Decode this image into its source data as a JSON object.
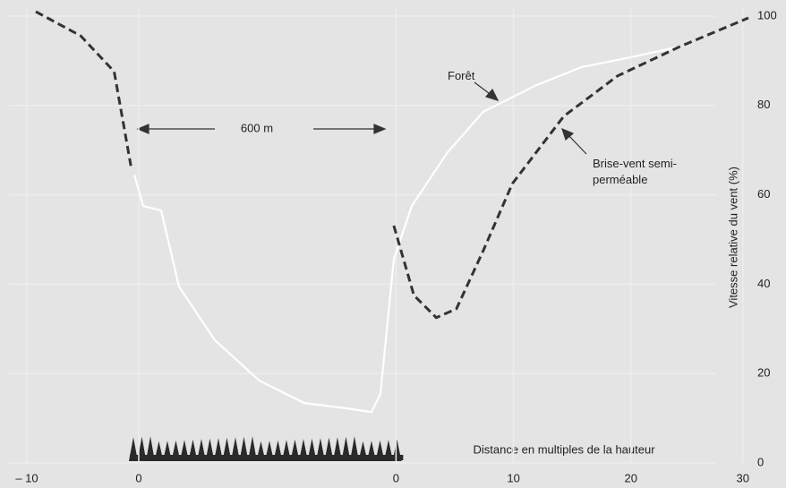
{
  "chart_data": {
    "type": "line",
    "y_label": "Vitesse relative du vent (%)",
    "x_label": "Distance en multiples de la hauteur",
    "annotation": "600 m",
    "xlim": [
      -11,
      56.5
    ],
    "xticks": [
      {
        "value": -10,
        "label": "– 10"
      },
      0,
      {
        "value": 23,
        "label": "0"
      },
      {
        "value": 33.5,
        "label": "10"
      },
      {
        "value": 44,
        "label": "20"
      },
      {
        "value": 54,
        "label": "30"
      }
    ],
    "ylim": [
      0,
      102
    ],
    "yticks": [
      0,
      20,
      40,
      60,
      80,
      100
    ],
    "grid": true,
    "series": [
      {
        "name": "Forêt",
        "color": "#ffffff",
        "dashed": false,
        "x": [
          -0.4,
          0.4,
          2,
          3.6,
          6.8,
          10.8,
          14.8,
          18,
          20.8,
          21.6,
          22.8,
          24.4,
          27.6,
          30.8,
          35.6,
          39.6,
          43.6,
          48.4
        ],
        "values": [
          64.5,
          57.5,
          56.5,
          39.5,
          27.5,
          18.4,
          13.4,
          12.4,
          11.4,
          15.4,
          45.5,
          57.5,
          69.5,
          78.6,
          84.6,
          88.6,
          90.6,
          93.2
        ]
      },
      {
        "name": "Brise-vent semi-perméable",
        "color": "#333333",
        "dashed": true,
        "x": [
          -9.2,
          -5.2,
          -2.2,
          -0.7,
          null,
          22.8,
          24.6,
          26.6,
          28.4,
          30.8,
          33.4,
          38,
          42.8,
          48.4,
          54.5
        ],
        "values": [
          101,
          95.6,
          87.6,
          66.5,
          null,
          53.1,
          37.5,
          32.5,
          34.5,
          47.5,
          62.5,
          77.6,
          86.6,
          93.2,
          99.6
        ]
      }
    ]
  }
}
